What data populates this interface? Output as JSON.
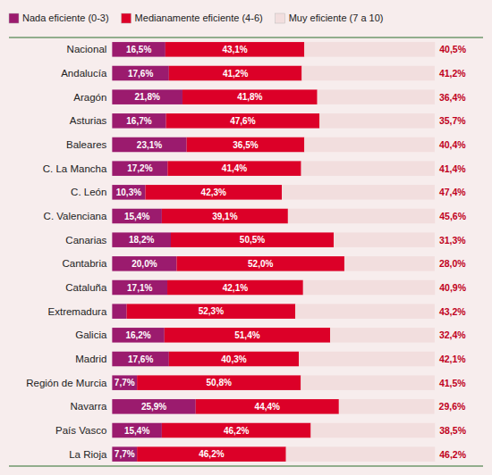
{
  "chart_data": {
    "type": "bar",
    "orientation": "horizontal",
    "stacked": true,
    "data_labels": true,
    "tick_labels": false,
    "grid": false,
    "legend": "top left",
    "xlim": [
      -32,
      115
    ],
    "categories": [
      "Nacional",
      "Andalucía",
      "Aragón",
      "Asturias",
      "Baleares",
      "C. La Mancha",
      "C. León",
      "C. Valenciana",
      "Canarias",
      "Cantabria",
      "Cataluña",
      "Extremadura",
      "Galicia",
      "Madrid",
      "Región de Murcia",
      "Navarra",
      "País Vasco",
      "La Rioja"
    ],
    "series": [
      {
        "name": "Nada eficiente (0-3)",
        "color": "#9b1b6e",
        "values": [
          16.5,
          17.6,
          21.8,
          16.7,
          23.1,
          17.2,
          10.3,
          15.4,
          18.2,
          20.0,
          17.1,
          4.5,
          16.2,
          17.6,
          7.7,
          25.9,
          15.4,
          7.7
        ],
        "value_labels": [
          "16,5%",
          "17,6%",
          "21,8%",
          "16,7%",
          "23,1%",
          "17,2%",
          "10,3%",
          "15,4%",
          "18,2%",
          "20,0%",
          "17,1%",
          null,
          "16,2%",
          "17,6%",
          "7,7%",
          "25,9%",
          "15,4%",
          "7,7%"
        ]
      },
      {
        "name": "Medianamente eficiente (4-6)",
        "color": "#dc0028",
        "values": [
          43.1,
          41.2,
          41.8,
          47.6,
          36.5,
          41.4,
          42.3,
          39.1,
          50.5,
          52.0,
          42.1,
          52.3,
          51.4,
          40.3,
          50.8,
          44.4,
          46.2,
          46.2
        ],
        "value_labels": [
          "43,1%",
          "41,2%",
          "41,8%",
          "47,6%",
          "36,5%",
          "41,4%",
          "42,3%",
          "39,1%",
          "50,5%",
          "52,0%",
          "42,1%",
          "52,3%",
          "51,4%",
          "40,3%",
          "50,8%",
          "44,4%",
          "46,2%",
          "46,2%"
        ]
      },
      {
        "name": "Muy eficiente (7 a 10)",
        "color": "#f2dede",
        "values": [
          40.5,
          41.2,
          36.4,
          35.7,
          40.4,
          41.4,
          47.4,
          45.6,
          31.3,
          28.0,
          40.9,
          43.2,
          32.4,
          42.1,
          41.5,
          29.6,
          38.5,
          46.2
        ],
        "value_labels": [
          "40,5%",
          "41,2%",
          "36,4%",
          "35,7%",
          "40,4%",
          "41,4%",
          "47,4%",
          "45,6%",
          "31,3%",
          "28,0%",
          "40,9%",
          "43,2%",
          "32,4%",
          "42,1%",
          "41,5%",
          "29,6%",
          "38,5%",
          "46,2%"
        ]
      }
    ]
  }
}
